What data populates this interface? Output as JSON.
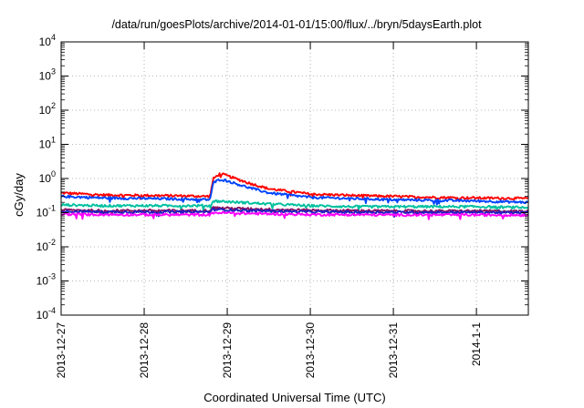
{
  "chart_data": {
    "type": "line",
    "title": "/data/run/goesPlots/archive/2014-01-01/15:00/flux/../bryn/5daysEarth.plot",
    "xlabel": "Coordinated Universal Time (UTC)",
    "ylabel": "cGy/day",
    "x_ticks": [
      "2013-12-27",
      "2013-12-28",
      "2013-12-29",
      "2013-12-30",
      "2013-12-31",
      "2014-1-1"
    ],
    "xlim": [
      "2013-12-27 00:00",
      "2014-01-01 15:00"
    ],
    "y_scale": "log",
    "ylim": [
      0.0001,
      10000
    ],
    "y_ticks": [
      {
        "base": "10",
        "exp": "-4"
      },
      {
        "base": "10",
        "exp": "-3"
      },
      {
        "base": "10",
        "exp": "-2"
      },
      {
        "base": "10",
        "exp": "-1"
      },
      {
        "base": "10",
        "exp": "0"
      },
      {
        "base": "10",
        "exp": "1"
      },
      {
        "base": "10",
        "exp": "2"
      },
      {
        "base": "10",
        "exp": "3"
      },
      {
        "base": "10",
        "exp": "4"
      }
    ],
    "grid": true,
    "series": [
      {
        "color": "#ff0000",
        "points": [
          [
            "2013-12-27 00:00",
            0.38
          ],
          [
            "2013-12-27 12:00",
            0.33
          ],
          [
            "2013-12-28 00:00",
            0.32
          ],
          [
            "2013-12-28 12:00",
            0.31
          ],
          [
            "2013-12-28 19:00",
            0.3
          ],
          [
            "2013-12-28 20:00",
            1.0
          ],
          [
            "2013-12-28 22:00",
            1.4
          ],
          [
            "2013-12-29 00:00",
            1.2
          ],
          [
            "2013-12-29 06:00",
            0.75
          ],
          [
            "2013-12-29 12:00",
            0.5
          ],
          [
            "2013-12-30 00:00",
            0.35
          ],
          [
            "2013-12-30 12:00",
            0.32
          ],
          [
            "2013-12-31 00:00",
            0.3
          ],
          [
            "2013-12-31 12:00",
            0.28
          ],
          [
            "2014-01-01 00:00",
            0.27
          ],
          [
            "2014-01-01 15:00",
            0.26
          ]
        ]
      },
      {
        "color": "#0044ff",
        "points": [
          [
            "2013-12-27 00:00",
            0.3
          ],
          [
            "2013-12-27 12:00",
            0.27
          ],
          [
            "2013-12-28 00:00",
            0.26
          ],
          [
            "2013-12-28 12:00",
            0.25
          ],
          [
            "2013-12-28 19:00",
            0.24
          ],
          [
            "2013-12-28 20:00",
            0.75
          ],
          [
            "2013-12-28 22:00",
            0.95
          ],
          [
            "2013-12-29 00:00",
            0.85
          ],
          [
            "2013-12-29 06:00",
            0.55
          ],
          [
            "2013-12-29 12:00",
            0.38
          ],
          [
            "2013-12-30 00:00",
            0.28
          ],
          [
            "2013-12-30 12:00",
            0.26
          ],
          [
            "2013-12-31 00:00",
            0.24
          ],
          [
            "2013-12-31 12:00",
            0.23
          ],
          [
            "2014-01-01 00:00",
            0.22
          ],
          [
            "2014-01-01 15:00",
            0.2
          ]
        ]
      },
      {
        "color": "#00c0a0",
        "points": [
          [
            "2013-12-27 00:00",
            0.17
          ],
          [
            "2013-12-27 12:00",
            0.16
          ],
          [
            "2013-12-28 00:00",
            0.16
          ],
          [
            "2013-12-28 12:00",
            0.16
          ],
          [
            "2013-12-28 19:00",
            0.16
          ],
          [
            "2013-12-28 20:00",
            0.22
          ],
          [
            "2013-12-29 00:00",
            0.21
          ],
          [
            "2013-12-29 12:00",
            0.18
          ],
          [
            "2013-12-30 00:00",
            0.16
          ],
          [
            "2013-12-30 12:00",
            0.15
          ],
          [
            "2013-12-31 00:00",
            0.15
          ],
          [
            "2013-12-31 12:00",
            0.15
          ],
          [
            "2014-01-01 00:00",
            0.15
          ],
          [
            "2014-01-01 15:00",
            0.14
          ]
        ]
      },
      {
        "color": "#8a1060",
        "points": [
          [
            "2013-12-27 00:00",
            0.12
          ],
          [
            "2013-12-27 12:00",
            0.115
          ],
          [
            "2013-12-28 00:00",
            0.115
          ],
          [
            "2013-12-28 12:00",
            0.115
          ],
          [
            "2013-12-28 19:00",
            0.115
          ],
          [
            "2013-12-28 20:00",
            0.14
          ],
          [
            "2013-12-29 00:00",
            0.135
          ],
          [
            "2013-12-29 12:00",
            0.125
          ],
          [
            "2013-12-30 00:00",
            0.118
          ],
          [
            "2013-12-30 12:00",
            0.115
          ],
          [
            "2013-12-31 00:00",
            0.113
          ],
          [
            "2013-12-31 12:00",
            0.112
          ],
          [
            "2014-01-01 00:00",
            0.112
          ],
          [
            "2014-01-01 15:00",
            0.11
          ]
        ]
      },
      {
        "color": "#2020c0",
        "points": [
          [
            "2013-12-27 00:00",
            0.11
          ],
          [
            "2013-12-27 12:00",
            0.105
          ],
          [
            "2013-12-28 00:00",
            0.105
          ],
          [
            "2013-12-28 12:00",
            0.105
          ],
          [
            "2013-12-28 19:00",
            0.105
          ],
          [
            "2013-12-28 20:00",
            0.125
          ],
          [
            "2013-12-29 00:00",
            0.12
          ],
          [
            "2013-12-29 12:00",
            0.112
          ],
          [
            "2013-12-30 00:00",
            0.106
          ],
          [
            "2013-12-30 12:00",
            0.104
          ],
          [
            "2013-12-31 00:00",
            0.103
          ],
          [
            "2013-12-31 12:00",
            0.102
          ],
          [
            "2014-01-01 00:00",
            0.102
          ],
          [
            "2014-01-01 15:00",
            0.1
          ]
        ]
      },
      {
        "color": "#ff00ff",
        "points": [
          [
            "2013-12-27 00:00",
            0.09
          ],
          [
            "2013-12-27 12:00",
            0.088
          ],
          [
            "2013-12-28 00:00",
            0.087
          ],
          [
            "2013-12-28 12:00",
            0.087
          ],
          [
            "2013-12-28 19:00",
            0.087
          ],
          [
            "2013-12-28 20:00",
            0.1
          ],
          [
            "2013-12-29 00:00",
            0.098
          ],
          [
            "2013-12-29 12:00",
            0.092
          ],
          [
            "2013-12-30 00:00",
            0.088
          ],
          [
            "2013-12-30 12:00",
            0.087
          ],
          [
            "2013-12-31 00:00",
            0.086
          ],
          [
            "2013-12-31 12:00",
            0.086
          ],
          [
            "2014-01-01 00:00",
            0.086
          ],
          [
            "2014-01-01 15:00",
            0.085
          ]
        ]
      }
    ]
  }
}
